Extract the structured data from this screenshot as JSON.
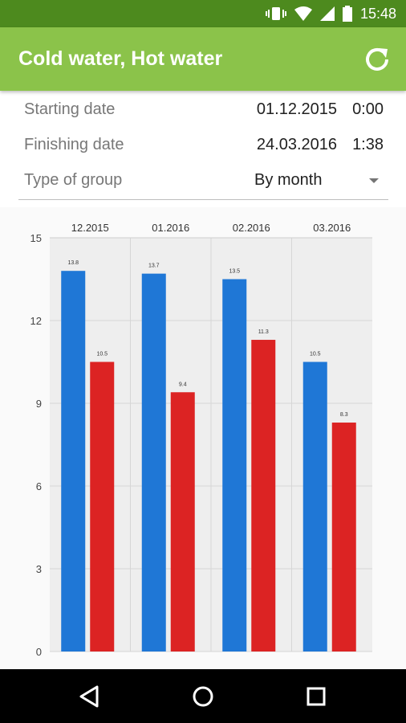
{
  "status_bar": {
    "time": "15:48",
    "icons": [
      "vibrate-icon",
      "wifi-icon",
      "signal-icon",
      "battery-icon"
    ]
  },
  "app_bar": {
    "title": "Cold water, Hot water",
    "refresh_icon": "refresh-icon"
  },
  "form": {
    "starting_label": "Starting date",
    "starting_date": "01.12.2015",
    "starting_time": "0:00",
    "finishing_label": "Finishing date",
    "finishing_date": "24.03.2016",
    "finishing_time": "1:38",
    "group_label": "Type of group",
    "group_value": "By month"
  },
  "colors": {
    "cold": "#1f77d6",
    "hot": "#dc2323",
    "appbar": "#8bc34a",
    "statusbar": "#4d8a1e"
  },
  "chart_data": {
    "type": "bar",
    "categories": [
      "12.2015",
      "01.2016",
      "02.2016",
      "03.2016"
    ],
    "series": [
      {
        "values": [
          13.8,
          13.7,
          13.5,
          10.5
        ]
      },
      {
        "values": [
          10.5,
          9.4,
          11.3,
          8.3
        ]
      }
    ],
    "ylim": [
      0,
      15
    ],
    "yticks": [
      0,
      3,
      6,
      9,
      12,
      15
    ],
    "grid": true
  },
  "nav": {
    "back": "back-icon",
    "home": "home-icon",
    "recents": "recents-icon"
  }
}
